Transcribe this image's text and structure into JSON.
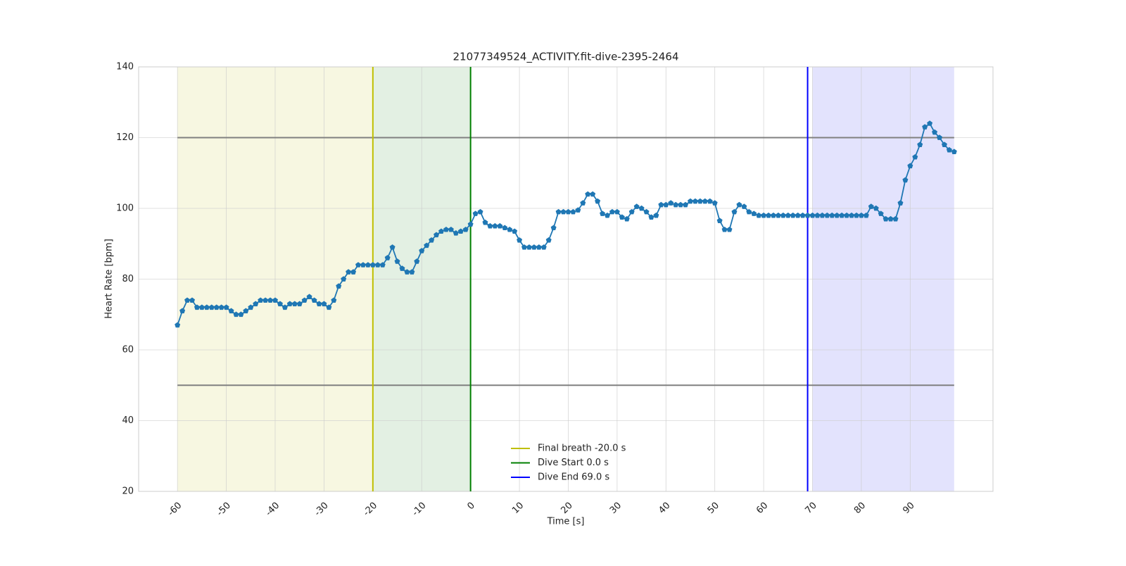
{
  "chart_data": {
    "type": "line",
    "title": "21077349524_ACTIVITY.fit-dive-2395-2464",
    "xlabel": "Time [s]",
    "ylabel": "Heart Rate [bpm]",
    "x": [
      -60,
      -59,
      -58,
      -57,
      -56,
      -55,
      -54,
      -53,
      -52,
      -51,
      -50,
      -49,
      -48,
      -47,
      -46,
      -45,
      -44,
      -43,
      -42,
      -41,
      -40,
      -39,
      -38,
      -37,
      -36,
      -35,
      -34,
      -33,
      -32,
      -31,
      -30,
      -29,
      -28,
      -27,
      -26,
      -25,
      -24,
      -23,
      -22,
      -21,
      -20,
      -19,
      -18,
      -17,
      -16,
      -15,
      -14,
      -13,
      -12,
      -11,
      -10,
      -9,
      -8,
      -7,
      -6,
      -5,
      -4,
      -3,
      -2,
      -1,
      0,
      1,
      2,
      3,
      4,
      5,
      6,
      7,
      8,
      9,
      10,
      11,
      12,
      13,
      14,
      15,
      16,
      17,
      18,
      19,
      20,
      21,
      22,
      23,
      24,
      25,
      26,
      27,
      28,
      29,
      30,
      31,
      32,
      33,
      34,
      35,
      36,
      37,
      38,
      39,
      40,
      41,
      42,
      43,
      44,
      45,
      46,
      47,
      48,
      49,
      50,
      51,
      52,
      53,
      54,
      55,
      56,
      57,
      58,
      59,
      60,
      61,
      62,
      63,
      64,
      65,
      66,
      67,
      68,
      69,
      70,
      71,
      72,
      73,
      74,
      75,
      76,
      77,
      78,
      79,
      80,
      81,
      82,
      83,
      84,
      85,
      86,
      87,
      88,
      89,
      90,
      91,
      92,
      93,
      94,
      95,
      96,
      97,
      98,
      99
    ],
    "series": [
      {
        "color": "#1f77b4",
        "values": [
          67,
          71,
          74,
          74,
          72,
          72,
          72,
          72,
          72,
          72,
          72,
          71,
          70,
          70,
          71,
          72,
          73,
          74,
          74,
          74,
          74,
          73,
          72,
          73,
          73,
          73,
          74,
          75,
          74,
          73,
          73,
          72,
          74,
          78,
          80,
          82,
          82,
          84,
          84,
          84,
          84,
          84,
          84,
          86,
          89,
          85,
          83,
          82,
          82,
          85,
          88,
          89.5,
          91,
          92.5,
          93.5,
          94,
          94,
          93,
          93.5,
          94,
          95.5,
          98.5,
          99,
          96,
          95,
          95,
          95,
          94.5,
          94,
          93.5,
          91,
          89,
          89,
          89,
          89,
          89,
          91,
          94.5,
          99,
          99,
          99,
          99,
          99.5,
          101.5,
          104,
          104,
          102,
          98.5,
          98,
          99,
          99,
          97.5,
          97,
          99,
          100.5,
          100,
          99,
          97.5,
          98,
          101,
          101,
          101.5,
          101,
          101,
          101,
          102,
          102,
          102,
          102,
          102,
          101.5,
          96.5,
          94,
          94,
          99,
          101,
          100.5,
          99,
          98.5,
          98,
          98,
          98,
          98,
          98,
          98,
          98,
          98,
          98,
          98,
          98,
          98,
          98,
          98,
          98,
          98,
          98,
          98,
          98,
          98,
          98,
          98,
          98,
          100.5,
          100,
          98.5,
          97,
          97,
          97,
          101.5,
          108,
          112,
          114.5,
          118,
          123,
          124,
          121.5,
          120,
          118,
          116.5,
          116
        ]
      }
    ],
    "spans": [
      {
        "x0": -60,
        "x1": -20,
        "color": "#f7f7e1"
      },
      {
        "x0": -20,
        "x1": 0,
        "color": "#e3f0e3"
      },
      {
        "x0": 70,
        "x1": 99,
        "color": "#e3e3fd"
      }
    ],
    "vlines": [
      {
        "x": -20,
        "label": "Final breath -20.0 s",
        "color": "#bfbf00"
      },
      {
        "x": 0,
        "label": "Dive Start 0.0 s",
        "color": "#007f00"
      },
      {
        "x": 69,
        "label": "Dive End 69.0 s",
        "color": "#0000ff"
      }
    ],
    "hlines": [
      {
        "y": 120,
        "x0": -60,
        "x1": 99
      },
      {
        "y": 50,
        "x0": -60,
        "x1": 99
      }
    ],
    "xlim": [
      -67.95,
      106.95
    ],
    "ylim": [
      20,
      140
    ],
    "xticks": [
      -60,
      -50,
      -40,
      -30,
      -20,
      -10,
      0,
      10,
      20,
      30,
      40,
      50,
      60,
      70,
      80,
      90
    ],
    "yticks": [
      20,
      40,
      60,
      80,
      100,
      120,
      140
    ],
    "grid": true,
    "legend": "lower center"
  }
}
